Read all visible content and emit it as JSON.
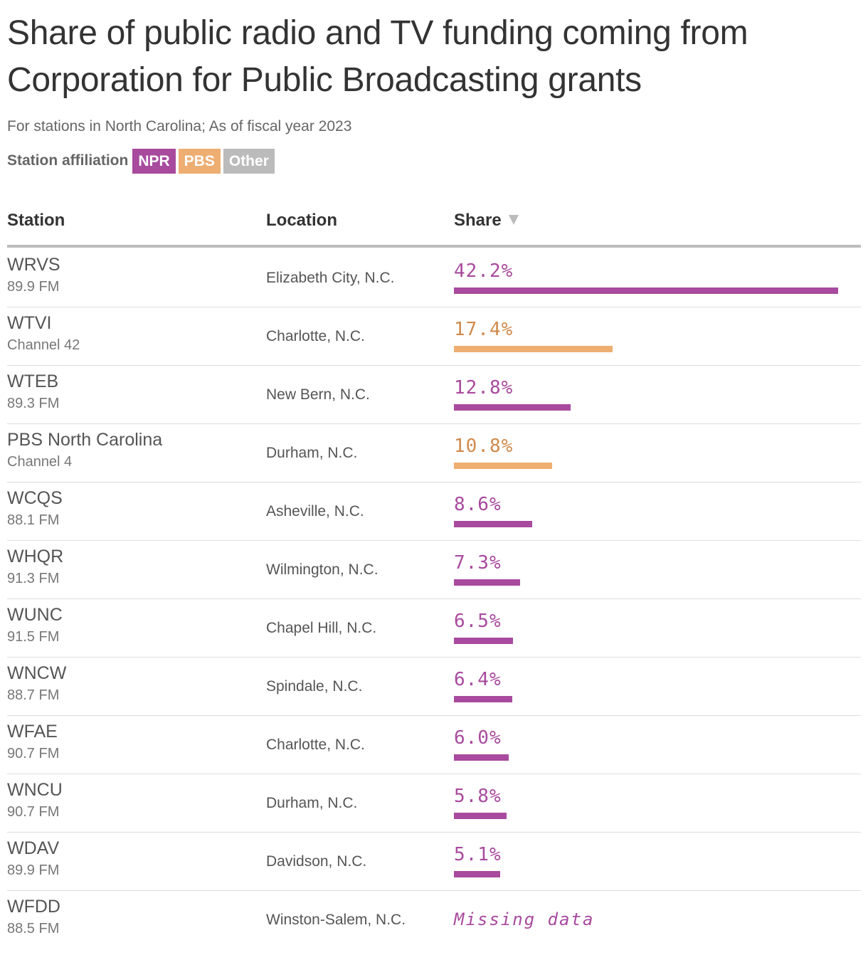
{
  "title": "Share of public radio and TV funding coming from Corporation for Public Broadcasting grants",
  "subtitle": "For stations in North Carolina; As of fiscal year 2023",
  "legend": {
    "label": "Station affiliation",
    "items": [
      {
        "name": "NPR",
        "color": "#a84a9e"
      },
      {
        "name": "PBS",
        "color": "#eeae72"
      },
      {
        "name": "Other",
        "color": "#bbbbbb"
      }
    ]
  },
  "colors": {
    "NPR": "#a84a9e",
    "PBS": "#eeae72",
    "PBS_text": "#d08a4c",
    "Other": "#bbbbbb"
  },
  "table": {
    "headers": {
      "station": "Station",
      "location": "Location",
      "share": "Share"
    },
    "sort_icon": "sort-descending-icon",
    "missing_label": "Missing data"
  },
  "chart_data": {
    "type": "table",
    "title": "Share of public radio and TV funding coming from Corporation for Public Broadcasting grants",
    "subtitle": "For stations in North Carolina; As of fiscal year 2023",
    "value_unit": "%",
    "xlim": [
      0,
      42.2
    ],
    "rows": [
      {
        "station": "WRVS",
        "sub": "89.9 FM",
        "location": "Elizabeth City, N.C.",
        "affiliation": "NPR",
        "share": 42.2,
        "share_label": "42.2%"
      },
      {
        "station": "WTVI",
        "sub": "Channel 42",
        "location": "Charlotte, N.C.",
        "affiliation": "PBS",
        "share": 17.4,
        "share_label": "17.4%"
      },
      {
        "station": "WTEB",
        "sub": "89.3 FM",
        "location": "New Bern, N.C.",
        "affiliation": "NPR",
        "share": 12.8,
        "share_label": "12.8%"
      },
      {
        "station": "PBS North Carolina",
        "sub": "Channel 4",
        "location": "Durham, N.C.",
        "affiliation": "PBS",
        "share": 10.8,
        "share_label": "10.8%"
      },
      {
        "station": "WCQS",
        "sub": "88.1 FM",
        "location": "Asheville, N.C.",
        "affiliation": "NPR",
        "share": 8.6,
        "share_label": "8.6%"
      },
      {
        "station": "WHQR",
        "sub": "91.3 FM",
        "location": "Wilmington, N.C.",
        "affiliation": "NPR",
        "share": 7.3,
        "share_label": "7.3%"
      },
      {
        "station": "WUNC",
        "sub": "91.5 FM",
        "location": "Chapel Hill, N.C.",
        "affiliation": "NPR",
        "share": 6.5,
        "share_label": "6.5%"
      },
      {
        "station": "WNCW",
        "sub": "88.7 FM",
        "location": "Spindale, N.C.",
        "affiliation": "NPR",
        "share": 6.4,
        "share_label": "6.4%"
      },
      {
        "station": "WFAE",
        "sub": "90.7 FM",
        "location": "Charlotte, N.C.",
        "affiliation": "NPR",
        "share": 6.0,
        "share_label": "6.0%"
      },
      {
        "station": "WNCU",
        "sub": "90.7 FM",
        "location": "Durham, N.C.",
        "affiliation": "NPR",
        "share": 5.8,
        "share_label": "5.8%"
      },
      {
        "station": "WDAV",
        "sub": "89.9 FM",
        "location": "Davidson, N.C.",
        "affiliation": "NPR",
        "share": 5.1,
        "share_label": "5.1%"
      },
      {
        "station": "WFDD",
        "sub": "88.5 FM",
        "location": "Winston-Salem, N.C.",
        "affiliation": "NPR",
        "share": null,
        "share_label": null
      }
    ]
  }
}
